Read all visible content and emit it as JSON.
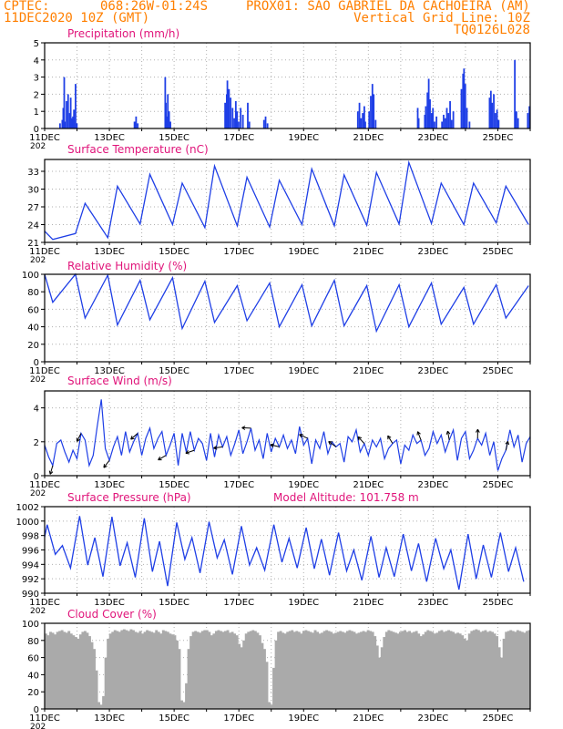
{
  "header": {
    "line1_left": "CPTEC:",
    "line1_coords": "068:26W-01:24S",
    "line1_station": "PROX01: SAO GABRIEL DA CACHOEIRA (AM)",
    "line2_left": "11DEC2020 10Z (GMT)",
    "line2_right": "Vertical Grid Line: 10Z",
    "line3_right": "TQ0126L028"
  },
  "colors": {
    "header": "#ff7f00",
    "title": "#e0147a",
    "line": "#1f3fe6",
    "bar": "#1f3fe6",
    "cloud": "#aaaaaa",
    "grid": "#b0b0b0",
    "axis": "#000000",
    "arrow": "#000000"
  },
  "x_axis": {
    "tick_labels": [
      "11DEC",
      "13DEC",
      "15DEC",
      "17DEC",
      "19DEC",
      "21DEC",
      "23DEC",
      "25DEC"
    ],
    "year_stub": "202",
    "days_span": 15
  },
  "chart_data": [
    {
      "id": "precip",
      "type": "bar",
      "title": "Precipitation (mm/h)",
      "ylim": [
        0,
        5
      ],
      "yticks": [
        0,
        1,
        2,
        3,
        4,
        5
      ],
      "grid": true,
      "events": [
        {
          "day": 0.55,
          "mm": 1.2
        },
        {
          "day": 0.6,
          "mm": 0.4
        },
        {
          "day": 0.65,
          "mm": 1.6
        },
        {
          "day": 0.7,
          "mm": 2.0
        },
        {
          "day": 0.75,
          "mm": 0.9
        },
        {
          "day": 0.82,
          "mm": 0.6
        },
        {
          "day": 0.88,
          "mm": 1.1
        },
        {
          "day": 0.93,
          "mm": 2.6
        },
        {
          "day": 0.97,
          "mm": 0.3
        },
        {
          "day": 0.58,
          "mm": 3.0
        },
        {
          "day": 0.45,
          "mm": 0.3
        },
        {
          "day": 0.52,
          "mm": 0.5
        },
        {
          "day": 0.78,
          "mm": 1.8
        },
        {
          "day": 0.85,
          "mm": 0.7
        },
        {
          "day": 2.75,
          "mm": 0.4
        },
        {
          "day": 2.8,
          "mm": 0.7
        },
        {
          "day": 2.85,
          "mm": 0.3
        },
        {
          "day": 3.7,
          "mm": 3.0
        },
        {
          "day": 3.72,
          "mm": 1.5
        },
        {
          "day": 3.75,
          "mm": 0.7
        },
        {
          "day": 3.78,
          "mm": 2.0
        },
        {
          "day": 3.82,
          "mm": 1.0
        },
        {
          "day": 3.86,
          "mm": 0.4
        },
        {
          "day": 5.55,
          "mm": 1.5
        },
        {
          "day": 5.6,
          "mm": 2.0
        },
        {
          "day": 5.62,
          "mm": 2.8
        },
        {
          "day": 5.67,
          "mm": 2.3
        },
        {
          "day": 5.72,
          "mm": 1.8
        },
        {
          "day": 5.78,
          "mm": 1.2
        },
        {
          "day": 5.83,
          "mm": 0.6
        },
        {
          "day": 5.88,
          "mm": 1.6
        },
        {
          "day": 5.92,
          "mm": 1.0
        },
        {
          "day": 5.97,
          "mm": 0.4
        },
        {
          "day": 6.03,
          "mm": 1.2
        },
        {
          "day": 6.1,
          "mm": 0.8
        },
        {
          "day": 6.25,
          "mm": 1.5
        },
        {
          "day": 6.3,
          "mm": 0.4
        },
        {
          "day": 6.75,
          "mm": 0.5
        },
        {
          "day": 6.8,
          "mm": 0.7
        },
        {
          "day": 6.86,
          "mm": 0.3
        },
        {
          "day": 9.65,
          "mm": 1.0
        },
        {
          "day": 9.7,
          "mm": 1.5
        },
        {
          "day": 9.75,
          "mm": 0.6
        },
        {
          "day": 9.8,
          "mm": 0.9
        },
        {
          "day": 9.85,
          "mm": 1.3
        },
        {
          "day": 9.88,
          "mm": 0.4
        },
        {
          "day": 10.0,
          "mm": 1.0
        },
        {
          "day": 10.05,
          "mm": 1.9
        },
        {
          "day": 10.1,
          "mm": 2.6
        },
        {
          "day": 10.14,
          "mm": 2.0
        },
        {
          "day": 10.2,
          "mm": 0.5
        },
        {
          "day": 11.5,
          "mm": 1.2
        },
        {
          "day": 11.53,
          "mm": 0.6
        },
        {
          "day": 11.72,
          "mm": 0.8
        },
        {
          "day": 11.75,
          "mm": 1.3
        },
        {
          "day": 11.8,
          "mm": 2.1
        },
        {
          "day": 11.84,
          "mm": 2.9
        },
        {
          "day": 11.88,
          "mm": 1.7
        },
        {
          "day": 11.93,
          "mm": 0.9
        },
        {
          "day": 11.97,
          "mm": 1.2
        },
        {
          "day": 12.02,
          "mm": 0.4
        },
        {
          "day": 12.08,
          "mm": 0.7
        },
        {
          "day": 12.25,
          "mm": 0.4
        },
        {
          "day": 12.3,
          "mm": 0.8
        },
        {
          "day": 12.35,
          "mm": 0.6
        },
        {
          "day": 12.4,
          "mm": 1.2
        },
        {
          "day": 12.45,
          "mm": 0.9
        },
        {
          "day": 12.5,
          "mm": 1.6
        },
        {
          "day": 12.55,
          "mm": 0.5
        },
        {
          "day": 12.6,
          "mm": 1.0
        },
        {
          "day": 12.85,
          "mm": 2.3
        },
        {
          "day": 12.9,
          "mm": 3.2
        },
        {
          "day": 12.93,
          "mm": 3.5
        },
        {
          "day": 12.97,
          "mm": 2.6
        },
        {
          "day": 13.02,
          "mm": 1.2
        },
        {
          "day": 13.1,
          "mm": 0.4
        },
        {
          "day": 13.72,
          "mm": 1.8
        },
        {
          "day": 13.76,
          "mm": 2.2
        },
        {
          "day": 13.8,
          "mm": 1.5
        },
        {
          "day": 13.85,
          "mm": 2.0
        },
        {
          "day": 13.9,
          "mm": 0.9
        },
        {
          "day": 13.95,
          "mm": 1.1
        },
        {
          "day": 14.0,
          "mm": 0.5
        },
        {
          "day": 14.5,
          "mm": 4.0
        },
        {
          "day": 14.55,
          "mm": 1.0
        },
        {
          "day": 14.6,
          "mm": 0.6
        },
        {
          "day": 14.9,
          "mm": 0.9
        },
        {
          "day": 14.95,
          "mm": 1.3
        }
      ]
    },
    {
      "id": "temp",
      "type": "line",
      "title": "Surface Temperature (nC)",
      "ylim": [
        21,
        35
      ],
      "yticks": [
        21,
        24,
        27,
        30,
        33
      ],
      "grid": true,
      "peaks": [
        21.5,
        27.6,
        30.5,
        32.5,
        31.0,
        33.9,
        32.0,
        31.5,
        33.4,
        32.4,
        32.8,
        34.5,
        31.0,
        31.0,
        30.5
      ],
      "troughs": [
        22.5,
        21.8,
        24.1,
        24.0,
        23.5,
        23.8,
        23.6,
        24.0,
        23.8,
        23.9,
        24.1,
        24.2,
        24.0,
        24.3,
        24.0
      ],
      "peak_offset": 0.25,
      "trough_offset": 0.95,
      "start_value": 22.9
    },
    {
      "id": "rh",
      "type": "line",
      "title": "Relative Humidity (%)",
      "ylim": [
        0,
        100
      ],
      "yticks": [
        0,
        20,
        40,
        60,
        80,
        100
      ],
      "grid": true,
      "maxima": [
        100,
        99,
        93,
        96,
        92,
        87,
        90,
        88,
        93,
        87,
        88,
        90,
        85,
        88,
        87
      ],
      "minima": [
        68,
        50,
        42,
        48,
        38,
        45,
        47,
        40,
        41,
        41,
        35,
        40,
        43,
        43,
        50
      ],
      "min_offset": 0.25,
      "max_offset": 0.95,
      "start_value": 100
    },
    {
      "id": "wind",
      "type": "line",
      "title": "Surface Wind (m/s)",
      "ylim": [
        0,
        5
      ],
      "yticks": [
        0,
        2,
        4
      ],
      "grid": true,
      "arrows_label": "wind direction arrows",
      "speeds": [
        1.8,
        1.1,
        0.6,
        1.9,
        2.1,
        1.4,
        0.8,
        1.5,
        1.0,
        2.5,
        2.1,
        0.6,
        1.2,
        2.9,
        4.5,
        1.6,
        0.9,
        1.7,
        2.3,
        1.2,
        2.6,
        1.4,
        2.0,
        2.5,
        1.2,
        2.2,
        2.8,
        1.6,
        2.2,
        2.6,
        1.2,
        1.8,
        2.5,
        0.6,
        2.5,
        1.4,
        2.6,
        1.5,
        2.2,
        1.9,
        0.9,
        2.5,
        1.1,
        2.4,
        1.7,
        2.3,
        1.2,
        1.9,
        2.7,
        1.3,
        2.0,
        2.8,
        1.5,
        2.1,
        1.0,
        2.5,
        1.4,
        2.2,
        1.7,
        2.4,
        1.6,
        2.1,
        1.3,
        2.9,
        1.8,
        2.2,
        0.7,
        2.1,
        1.6,
        2.6,
        1.3,
        2.0,
        1.7,
        1.9,
        0.8,
        2.3,
        2.0,
        2.7,
        1.4,
        1.9,
        1.2,
        2.1,
        1.7,
        2.2,
        1.0,
        1.6,
        1.9,
        2.1,
        0.7,
        1.8,
        1.5,
        2.4,
        1.9,
        2.1,
        1.2,
        1.6,
        2.6,
        1.9,
        2.4,
        1.4,
        2.1,
        2.7,
        0.9,
        2.2,
        2.6,
        1.0,
        1.5,
        2.2,
        1.8,
        2.5,
        1.2,
        2.0,
        0.3,
        1.0,
        1.5,
        2.7,
        1.7,
        2.4,
        0.8,
        1.9,
        2.3
      ]
    },
    {
      "id": "pres",
      "type": "line",
      "title": "Surface Pressure (hPa)",
      "annotation": "Model Altitude: 101.758  m",
      "ylim": [
        990,
        1002
      ],
      "yticks": [
        990,
        992,
        994,
        996,
        998,
        1000,
        1002
      ],
      "grid": true,
      "max_am": [
        999.5,
        1000.7,
        1000.6,
        1000.4,
        999.8,
        999.9,
        999.3,
        999.5,
        999.1,
        998.4,
        997.9,
        998.2,
        997.6,
        998.2,
        998.4
      ],
      "min_pm": [
        993.5,
        992.3,
        992.2,
        991.0,
        992.8,
        992.6,
        993.2,
        993.5,
        992.5,
        991.8,
        992.3,
        991.6,
        990.5,
        992.2,
        991.6
      ],
      "max2": [
        996.6,
        997.7,
        997.0,
        997.2,
        997.7,
        997.4,
        996.3,
        997.6,
        997.5,
        996.0,
        996.3,
        996.9,
        996.0,
        996.7,
        996.3
      ],
      "min2": [
        995.4,
        993.9,
        993.8,
        993.0,
        994.7,
        994.9,
        993.9,
        994.3,
        993.4,
        993.1,
        992.2,
        993.1,
        993.4,
        992.0,
        993.0
      ],
      "start_value": 997.8
    },
    {
      "id": "cloud",
      "type": "area",
      "title": "Cloud Cover (%)",
      "ylim": [
        0,
        100
      ],
      "yticks": [
        0,
        20,
        40,
        60,
        80,
        100
      ],
      "grid": true,
      "values": [
        88,
        86,
        90,
        89,
        87,
        90,
        91,
        92,
        90,
        89,
        91,
        88,
        86,
        84,
        82,
        87,
        90,
        91,
        89,
        85,
        78,
        70,
        45,
        8,
        5,
        15,
        60,
        82,
        88,
        90,
        92,
        91,
        90,
        92,
        93,
        92,
        91,
        93,
        92,
        90,
        89,
        91,
        88,
        90,
        92,
        91,
        90,
        89,
        92,
        90,
        88,
        92,
        91,
        90,
        88,
        87,
        86,
        80,
        70,
        10,
        8,
        30,
        70,
        85,
        90,
        91,
        90,
        89,
        91,
        92,
        92,
        90,
        86,
        88,
        91,
        92,
        91,
        90,
        91,
        92,
        89,
        90,
        88,
        86,
        76,
        72,
        80,
        88,
        90,
        91,
        92,
        91,
        89,
        86,
        77,
        70,
        55,
        8,
        5,
        48,
        80,
        90,
        91,
        89,
        88,
        90,
        91,
        92,
        90,
        91,
        90,
        88,
        91,
        92,
        91,
        90,
        89,
        92,
        90,
        88,
        89,
        91,
        92,
        91,
        90,
        88,
        89,
        90,
        91,
        90,
        89,
        91,
        92,
        91,
        90,
        88,
        89,
        90,
        91,
        90,
        92,
        91,
        90,
        85,
        74,
        60,
        72,
        84,
        90,
        92,
        91,
        90,
        89,
        88,
        90,
        91,
        92,
        90,
        91,
        89,
        90,
        91,
        88,
        85,
        87,
        90,
        92,
        91,
        90,
        88,
        89,
        91,
        92,
        90,
        91,
        92,
        91,
        90,
        88,
        89,
        88,
        86,
        82,
        80,
        88,
        91,
        92,
        93,
        92,
        90,
        91,
        92,
        90,
        91,
        90,
        88,
        85,
        72,
        60,
        82,
        90,
        91,
        92,
        91,
        90,
        92,
        91,
        90,
        89,
        91,
        92
      ]
    }
  ]
}
